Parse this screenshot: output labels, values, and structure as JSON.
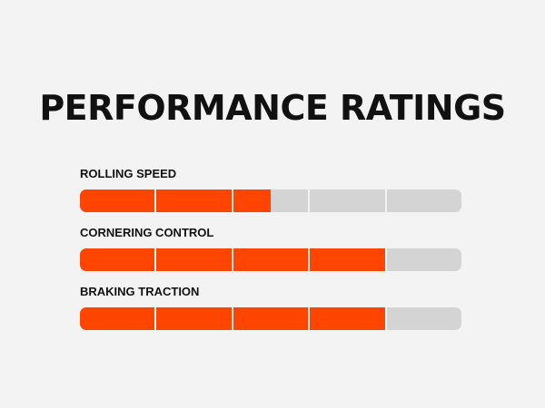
{
  "title": "PERFORMANCE RATINGS",
  "segments_per_bar": 5,
  "colors": {
    "fill": "#ff4500",
    "empty": "#d4d4d4",
    "background": "#f3f3f3",
    "text": "#111111"
  },
  "ratings": [
    {
      "label": "ROLLING SPEED",
      "value": 2.5,
      "max": 5
    },
    {
      "label": "CORNERING CONTROL",
      "value": 4,
      "max": 5
    },
    {
      "label": "BRAKING TRACTION",
      "value": 4,
      "max": 5
    }
  ]
}
